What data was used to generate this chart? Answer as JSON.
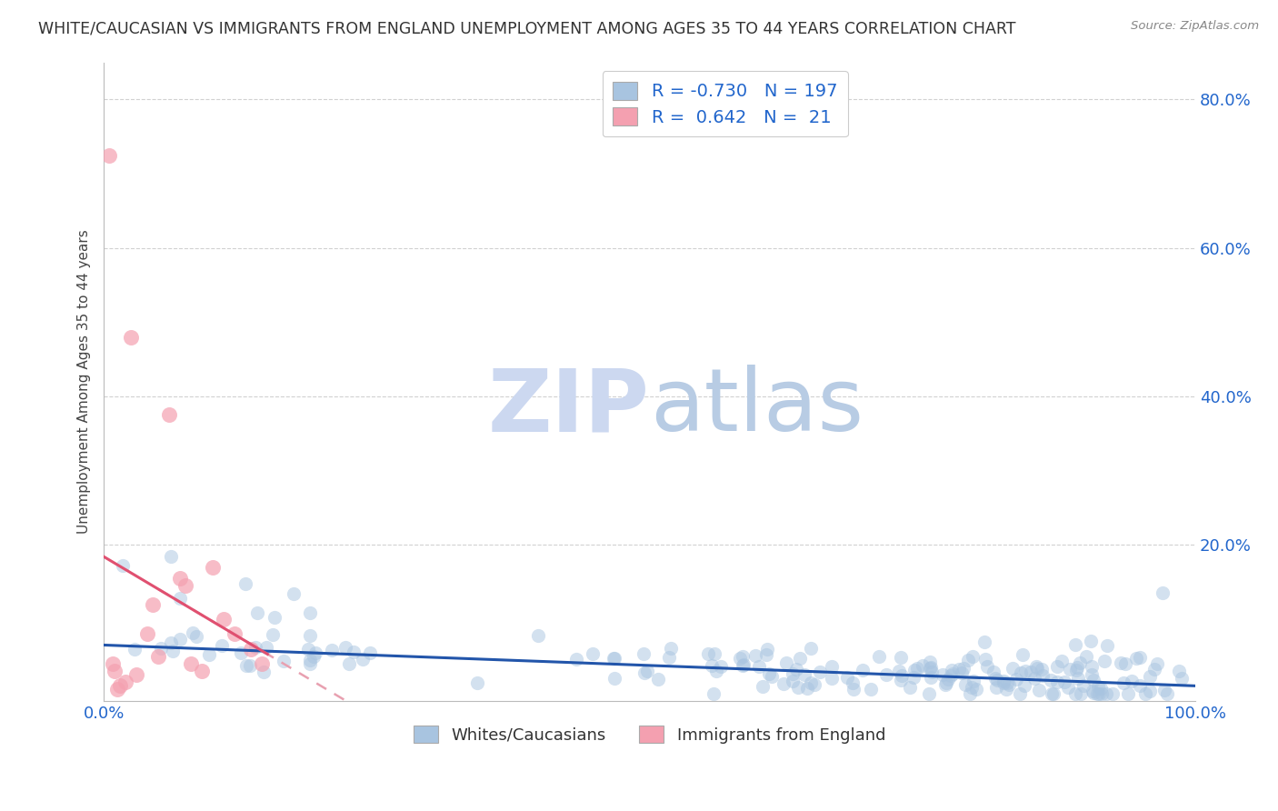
{
  "title": "WHITE/CAUCASIAN VS IMMIGRANTS FROM ENGLAND UNEMPLOYMENT AMONG AGES 35 TO 44 YEARS CORRELATION CHART",
  "source": "Source: ZipAtlas.com",
  "ylabel": "Unemployment Among Ages 35 to 44 years",
  "xlim": [
    0.0,
    1.0
  ],
  "ylim": [
    -0.01,
    0.85
  ],
  "blue_R": -0.73,
  "blue_N": 197,
  "pink_R": 0.642,
  "pink_N": 21,
  "blue_color": "#a8c4e0",
  "pink_color": "#f4a0b0",
  "blue_line_color": "#2255aa",
  "pink_line_color": "#e05070",
  "pink_line_dashed_color": "#e8a0b0",
  "blue_label": "Whites/Caucasians",
  "pink_label": "Immigrants from England",
  "legend_R_color": "#2266cc",
  "background_color": "#ffffff",
  "grid_color": "#cccccc",
  "title_fontsize": 12.5,
  "watermark_zip_color": "#ccd8f0",
  "watermark_atlas_color": "#b8cce4"
}
